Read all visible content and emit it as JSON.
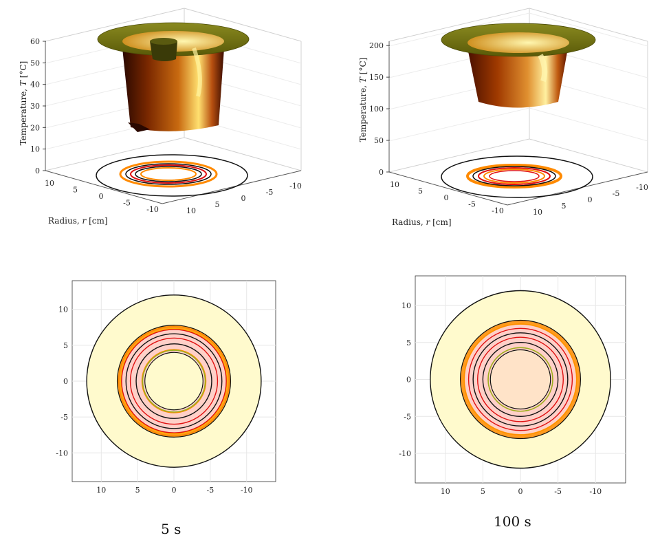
{
  "chart_data": [
    {
      "id": "surf-5s",
      "type": "surface3d",
      "zlabel_prefix": "Temperature, ",
      "zlabel_var": "T",
      "zlabel_unit": " [°C]",
      "xlabel_prefix": "Radius, ",
      "xlabel_var": "r",
      "xlabel_unit": " [cm]",
      "z_ticks": [
        "0",
        "10",
        "20",
        "30",
        "40",
        "50",
        "60"
      ],
      "z_range": [
        0,
        60
      ],
      "x_ticks": [
        "10",
        "5",
        "0",
        "-5",
        "-10"
      ],
      "y_ticks": [
        "10",
        "5",
        "0",
        "-5",
        "-10"
      ],
      "series": {
        "outer_radius_cm": 12,
        "inner_radius_cm": 4,
        "well_radius_cm": 7.5,
        "rim_T": 60,
        "well_bottom_T": 20
      }
    },
    {
      "id": "surf-100s",
      "type": "surface3d",
      "zlabel_prefix": "Temperature, ",
      "zlabel_var": "T",
      "zlabel_unit": " [°C]",
      "xlabel_prefix": "Radius, ",
      "xlabel_var": "r",
      "xlabel_unit": " [cm]",
      "z_ticks": [
        "0",
        "50",
        "100",
        "150",
        "200"
      ],
      "z_range": [
        0,
        210
      ],
      "x_ticks": [
        "10",
        "5",
        "0",
        "-5",
        "-10"
      ],
      "y_ticks": [
        "10",
        "5",
        "0",
        "-5",
        "-10"
      ],
      "series": {
        "outer_radius_cm": 12,
        "inner_radius_cm": 4,
        "well_radius_cm": 7.5,
        "rim_T": 210,
        "well_bottom_T": 100
      }
    },
    {
      "id": "contour-5s",
      "type": "contour",
      "x_ticks": [
        "10",
        "5",
        "0",
        "-5",
        "-10"
      ],
      "y_ticks": [
        "10",
        "5",
        "0",
        "-5",
        "-10"
      ],
      "xlim": [
        14,
        -14
      ],
      "ylim": [
        -14,
        14
      ],
      "rings_cm": {
        "outer": 12,
        "annulus_outer": 7.8,
        "annulus_inner": 4.0
      },
      "contour_radii_cm": [
        4.4,
        5.2,
        6.0,
        6.6,
        7.2,
        7.6
      ]
    },
    {
      "id": "contour-100s",
      "type": "contour",
      "x_ticks": [
        "10",
        "5",
        "0",
        "-5",
        "-10"
      ],
      "y_ticks": [
        "10",
        "5",
        "0",
        "-5",
        "-10"
      ],
      "xlim": [
        14,
        -14
      ],
      "ylim": [
        -14,
        14
      ],
      "rings_cm": {
        "outer": 12,
        "annulus_outer": 8.0,
        "annulus_inner": 4.0
      },
      "contour_radii_cm": [
        4.3,
        5.0,
        5.7,
        6.3,
        6.9,
        7.5
      ]
    }
  ],
  "captions": {
    "left": "5 s",
    "right": "100 s"
  },
  "colors": {
    "annulus_fill": "#fffacd",
    "ring_fill": "#ffd0c8",
    "inner_fill_100s": "#ffe3c8",
    "contour_red": "#e01010",
    "contour_orange": "#ff8a00",
    "contour_black": "#111111",
    "surface_dark": "#4a1200",
    "surface_bright": "#ffef60",
    "rim": "#6a6a10"
  }
}
